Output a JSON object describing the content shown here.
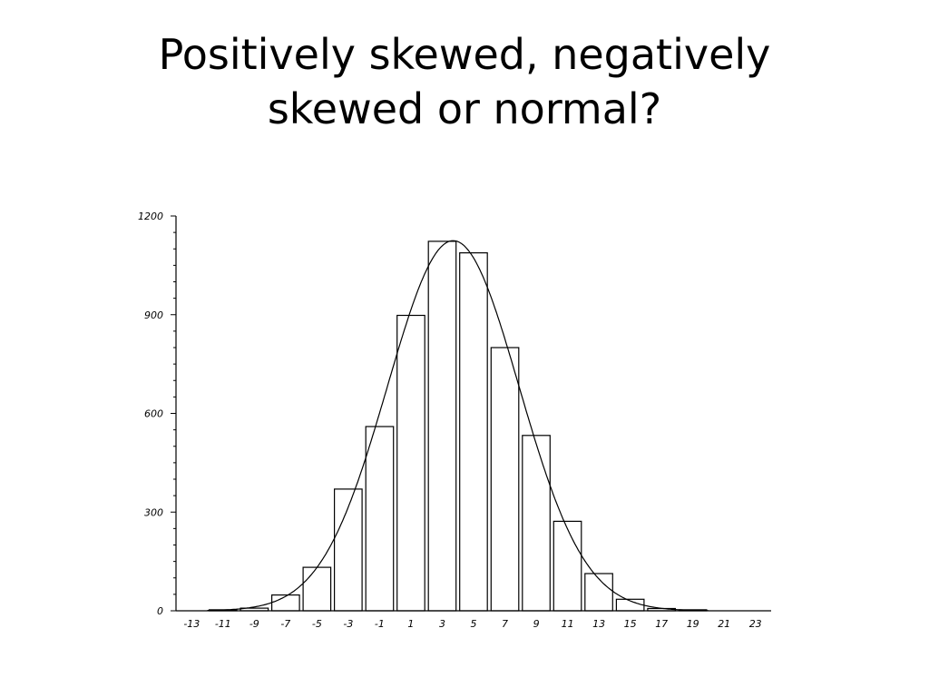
{
  "slide": {
    "title_line1": "Positively skewed, negatively",
    "title_line2": "skewed or normal?"
  },
  "chart_data": {
    "type": "bar",
    "title": "",
    "xlabel": "",
    "ylabel": "",
    "categories": [
      "-13",
      "-11",
      "-9",
      "-7",
      "-5",
      "-3",
      "-1",
      "1",
      "3",
      "5",
      "7",
      "9",
      "11",
      "13",
      "15",
      "17",
      "19",
      "21",
      "23"
    ],
    "x_values": [
      -13,
      -11,
      -9,
      -7,
      -5,
      -3,
      -1,
      1,
      3,
      5,
      7,
      9,
      11,
      13,
      15,
      17,
      19,
      21,
      23
    ],
    "values": [
      0,
      3,
      8,
      48,
      132,
      370,
      560,
      898,
      1123,
      1088,
      800,
      533,
      272,
      113,
      35,
      7,
      3,
      0,
      0
    ],
    "ylim": [
      0,
      1200
    ],
    "yticks": [
      0,
      300,
      600,
      900,
      1200
    ],
    "ytick_labels": [
      "0",
      "300",
      "600",
      "900",
      "1200"
    ],
    "xlim": [
      -14,
      24
    ],
    "overlay_curve": {
      "type": "normal",
      "mean": 3.7,
      "sd": 4.2,
      "peak": 1125
    },
    "bar_fill": "#ffffff",
    "bar_stroke": "#000000",
    "grid": false,
    "legend": "none"
  }
}
